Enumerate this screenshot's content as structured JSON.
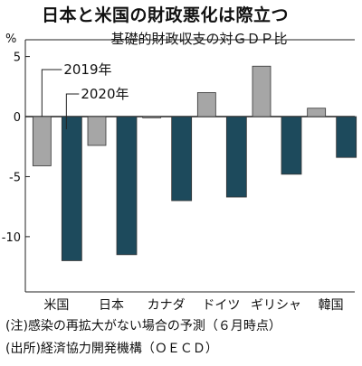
{
  "header": {
    "title": "日本と米国の財政悪化は際立つ",
    "subtitle": "基礎的財政収支の対ＧＤＰ比",
    "unit": "%"
  },
  "notes": {
    "note": "(注)感染の再拡大がない場合の予測（６月時点）",
    "source": "(出所)経済協力開発機構（ＯＥＣＤ）"
  },
  "colors": {
    "series_2019": "#a6a6a6",
    "series_2020": "#1d4a5c",
    "stroke": "#222222"
  },
  "chart_data": {
    "type": "bar",
    "title": "日本と米国の財政悪化は際立つ",
    "subtitle": "基礎的財政収支の対ＧＤＰ比",
    "ylabel": "%",
    "categories": [
      "米国",
      "日本",
      "カナダ",
      "ドイツ",
      "ギリシャ",
      "韓国"
    ],
    "series": [
      {
        "name": "2019年",
        "values": [
          -4.1,
          -2.4,
          -0.1,
          2.0,
          4.2,
          0.7
        ]
      },
      {
        "name": "2020年",
        "values": [
          -12.0,
          -11.5,
          -7.0,
          -6.7,
          -4.8,
          -3.4
        ]
      }
    ],
    "yticks": [
      5,
      0,
      -5,
      -10
    ],
    "ytick_labels": [
      "5",
      "0",
      "-5",
      "-10"
    ],
    "ylim": [
      -14.6,
      6.4
    ],
    "grid": false,
    "legend_position": "inline callouts near 米国 bars"
  }
}
